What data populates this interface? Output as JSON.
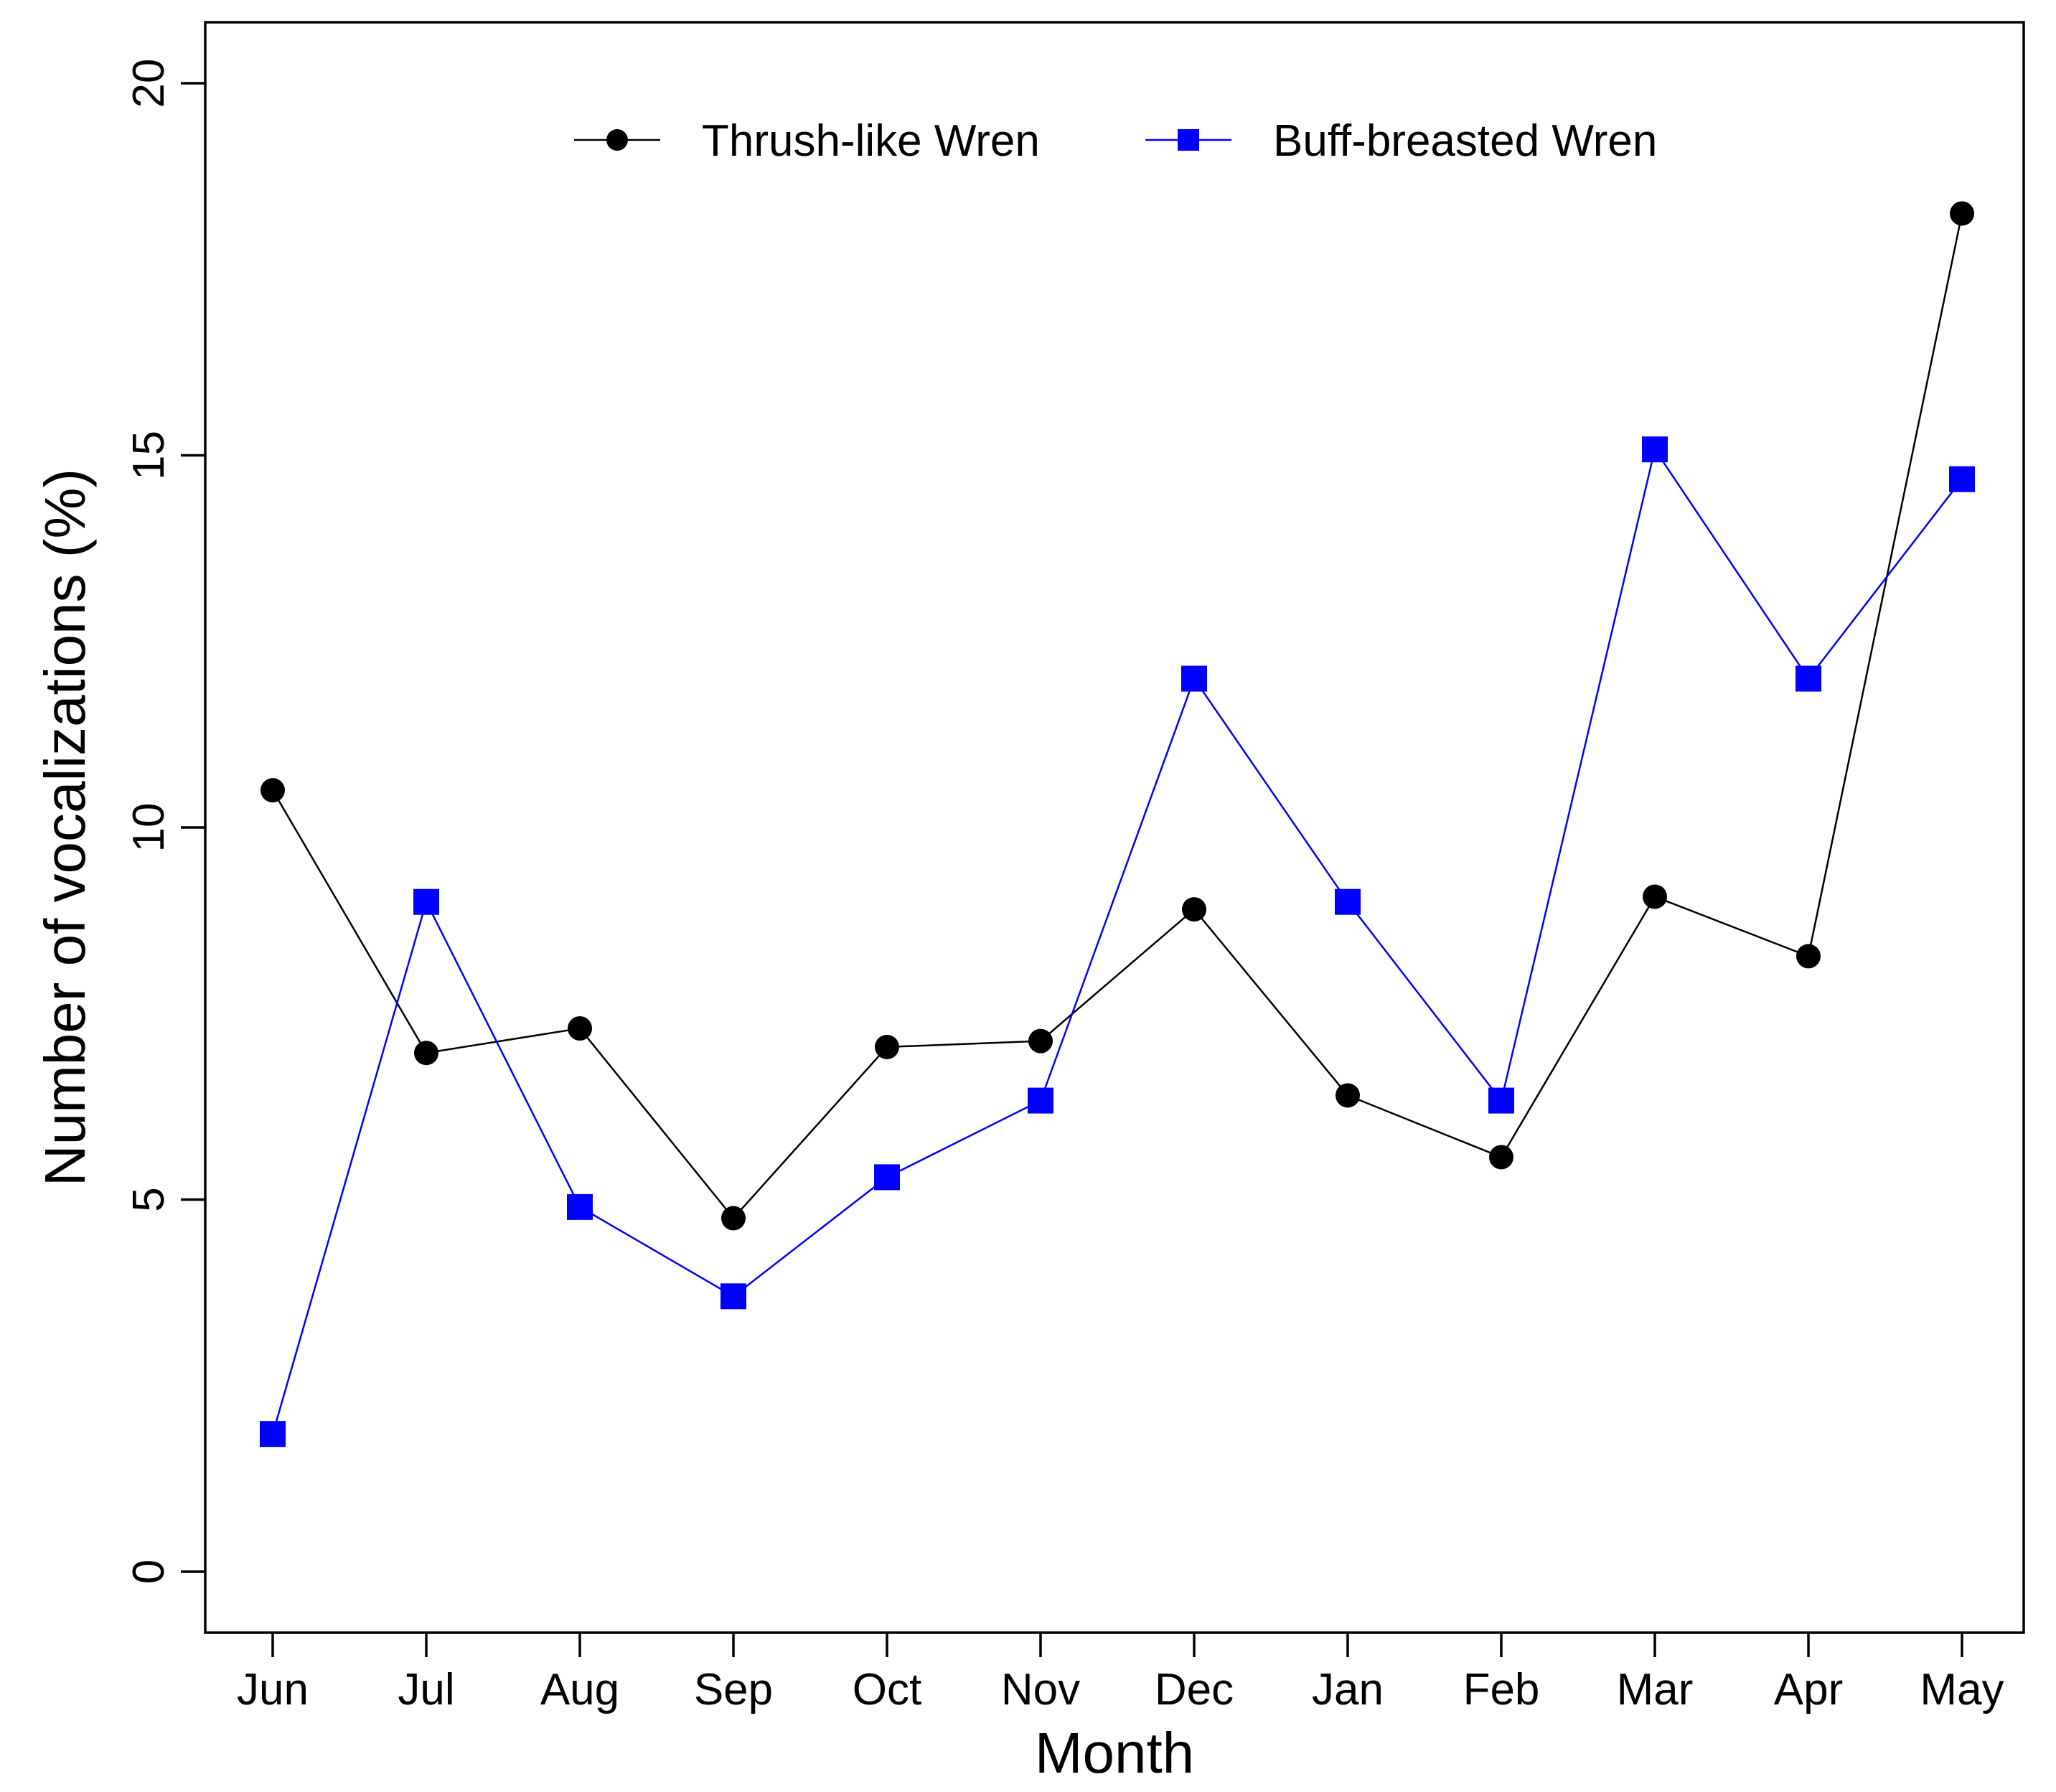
{
  "chart_data": {
    "type": "line",
    "title": "",
    "xlabel": "Month",
    "ylabel": "Number of vocalizations (%)",
    "categories": [
      "Jun",
      "Jul",
      "Aug",
      "Sep",
      "Oct",
      "Nov",
      "Dec",
      "Jan",
      "Feb",
      "Mar",
      "Apr",
      "May"
    ],
    "ylim": [
      0,
      20
    ],
    "yticks": [
      0,
      5,
      10,
      15,
      20
    ],
    "yticklabels": [
      "0",
      "5",
      "10",
      "15",
      "20"
    ],
    "grid": false,
    "legend_position": "top-center",
    "series": [
      {
        "name": "Thrush-like Wren",
        "marker": "circle",
        "color": "#000000",
        "values": [
          10.5,
          6.97,
          7.3,
          4.75,
          7.05,
          7.13,
          8.9,
          6.4,
          5.57,
          9.07,
          8.27,
          18.25
        ]
      },
      {
        "name": "Buff-breasted Wren",
        "marker": "square",
        "color": "#0000ff",
        "values": [
          1.85,
          9.0,
          4.9,
          3.7,
          5.3,
          6.33,
          12.0,
          9.0,
          6.33,
          15.08,
          12.0,
          14.68
        ]
      }
    ]
  }
}
